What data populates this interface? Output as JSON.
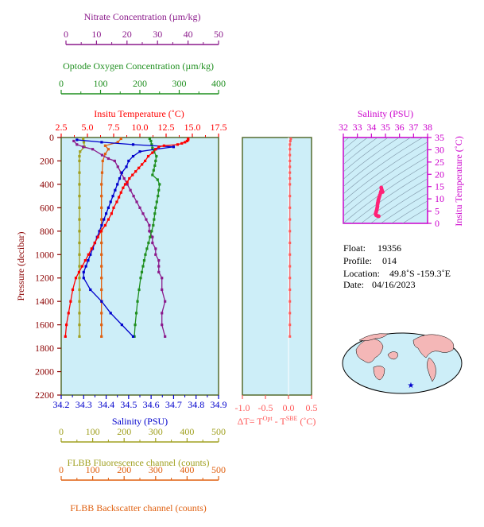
{
  "colors": {
    "nitrate": "#8b1a8b",
    "oxygen": "#1f8f1f",
    "temperature": "#ff0000",
    "salinity": "#0000cc",
    "ts_axis": "#cc00cc",
    "fluorescence": "#a0a020",
    "backscatter": "#e06010",
    "dt": "#ff5a5a",
    "plot_bg": "#cdeef8",
    "frame": "#556b2f"
  },
  "axes": {
    "nitrate_title": "Nitrate Concentration (µm/kg)",
    "nitrate_ticks": [
      "0",
      "10",
      "20",
      "30",
      "40",
      "50"
    ],
    "oxygen_title": "Optode Oxygen Concentration (µm/kg)",
    "oxygen_ticks": [
      "0",
      "100",
      "200",
      "300",
      "400"
    ],
    "temp_title": "Insitu Temperature (˚C)",
    "temp_ticks": [
      "2.5",
      "5.0",
      "7.5",
      "10.0",
      "12.5",
      "15.0",
      "17.5"
    ],
    "pressure_title": "Pressure (decibar)",
    "pressure_ticks": [
      "0",
      "200",
      "400",
      "600",
      "800",
      "1000",
      "1200",
      "1400",
      "1600",
      "1800",
      "2000",
      "2200"
    ],
    "salinity_title": "Salinity (PSU)",
    "salinity_ticks": [
      "34.2",
      "34.3",
      "34.4",
      "34.5",
      "34.6",
      "34.7",
      "34.8",
      "34.9"
    ],
    "dt_title_main": "ΔT= T",
    "dt_title_sup1": "Opt",
    "dt_title_mid": " - T",
    "dt_title_sup2": "SBE",
    "dt_title_end": " (˚C)",
    "dt_ticks": [
      "-1.0",
      "-0.5",
      "0.0",
      "0.5"
    ],
    "fluor_title": "FLBB Fluorescence channel (counts)",
    "fluor_ticks": [
      "0",
      "100",
      "200",
      "300",
      "400",
      "500"
    ],
    "back_title": "FLBB Backscatter channel (counts)",
    "back_ticks": [
      "0",
      "100",
      "200",
      "300",
      "400",
      "500"
    ],
    "ts_sal_title": "Salinity (PSU)",
    "ts_sal_ticks": [
      "32",
      "33",
      "34",
      "35",
      "36",
      "37",
      "38"
    ],
    "ts_temp_title": "Insitu Temperature (˚C)",
    "ts_temp_ticks": [
      "0",
      "5",
      "10",
      "15",
      "20",
      "25",
      "30",
      "35"
    ]
  },
  "info": {
    "float_label": "Float:",
    "float_value": "19356",
    "profile_label": "Profile:",
    "profile_value": "014",
    "location_label": "Location:",
    "location_value": "49.8˚S  -159.3˚E",
    "date_label": "Date:",
    "date_value": "04/16/2023"
  },
  "chart_data": [
    {
      "type": "line",
      "panel": "profile",
      "pressure_range": [
        0,
        2200
      ],
      "series": [
        {
          "quantity": "temperature",
          "units": "˚C",
          "xlim": [
            2.5,
            17.5
          ],
          "points": [
            [
              14.6,
              10
            ],
            [
              14.6,
              20
            ],
            [
              14.5,
              30
            ],
            [
              14.3,
              40
            ],
            [
              14.0,
              50
            ],
            [
              13.6,
              60
            ],
            [
              12.3,
              70
            ],
            [
              11.8,
              80
            ],
            [
              11.5,
              100
            ],
            [
              11.2,
              130
            ],
            [
              10.8,
              160
            ],
            [
              10.5,
              200
            ],
            [
              10.2,
              230
            ],
            [
              9.9,
              260
            ],
            [
              9.6,
              290
            ],
            [
              9.3,
              320
            ],
            [
              9.0,
              350
            ],
            [
              8.8,
              380
            ],
            [
              8.6,
              400
            ],
            [
              8.4,
              430
            ],
            [
              8.2,
              470
            ],
            [
              8.0,
              510
            ],
            [
              7.8,
              550
            ],
            [
              7.5,
              600
            ],
            [
              7.3,
              650
            ],
            [
              7.0,
              700
            ],
            [
              6.7,
              750
            ],
            [
              6.3,
              800
            ],
            [
              6.0,
              850
            ],
            [
              5.7,
              900
            ],
            [
              5.4,
              950
            ],
            [
              5.1,
              1000
            ],
            [
              4.8,
              1050
            ],
            [
              4.5,
              1100
            ],
            [
              4.2,
              1150
            ],
            [
              3.9,
              1200
            ],
            [
              3.6,
              1300
            ],
            [
              3.4,
              1400
            ],
            [
              3.2,
              1500
            ],
            [
              3.0,
              1600
            ],
            [
              2.9,
              1700
            ]
          ]
        },
        {
          "quantity": "salinity",
          "units": "PSU",
          "xlim": [
            34.2,
            34.9
          ],
          "points": [
            [
              34.27,
              20
            ],
            [
              34.38,
              40
            ],
            [
              34.52,
              60
            ],
            [
              34.7,
              80
            ],
            [
              34.62,
              100
            ],
            [
              34.55,
              120
            ],
            [
              34.52,
              160
            ],
            [
              34.5,
              200
            ],
            [
              34.49,
              250
            ],
            [
              34.47,
              300
            ],
            [
              34.46,
              350
            ],
            [
              34.45,
              400
            ],
            [
              34.44,
              450
            ],
            [
              34.43,
              500
            ],
            [
              34.42,
              550
            ],
            [
              34.41,
              600
            ],
            [
              34.4,
              650
            ],
            [
              34.39,
              700
            ],
            [
              34.38,
              750
            ],
            [
              34.37,
              800
            ],
            [
              34.36,
              850
            ],
            [
              34.35,
              900
            ],
            [
              34.34,
              950
            ],
            [
              34.33,
              1000
            ],
            [
              34.32,
              1050
            ],
            [
              34.31,
              1100
            ],
            [
              34.3,
              1150
            ],
            [
              34.3,
              1200
            ],
            [
              34.33,
              1300
            ],
            [
              34.38,
              1400
            ],
            [
              34.42,
              1500
            ],
            [
              34.47,
              1600
            ],
            [
              34.52,
              1700
            ]
          ]
        },
        {
          "quantity": "oxygen",
          "units": "µm/kg",
          "xlim": [
            0,
            400
          ],
          "points": [
            [
              225,
              10
            ],
            [
              228,
              30
            ],
            [
              230,
              60
            ],
            [
              232,
              90
            ],
            [
              236,
              120
            ],
            [
              242,
              160
            ],
            [
              240,
              200
            ],
            [
              238,
              240
            ],
            [
              235,
              280
            ],
            [
              232,
              320
            ],
            [
              245,
              360
            ],
            [
              250,
              400
            ],
            [
              248,
              450
            ],
            [
              246,
              500
            ],
            [
              243,
              550
            ],
            [
              240,
              600
            ],
            [
              238,
              650
            ],
            [
              236,
              700
            ],
            [
              234,
              750
            ],
            [
              230,
              800
            ],
            [
              226,
              850
            ],
            [
              222,
              900
            ],
            [
              218,
              950
            ],
            [
              214,
              1000
            ],
            [
              211,
              1050
            ],
            [
              208,
              1100
            ],
            [
              205,
              1150
            ],
            [
              202,
              1200
            ],
            [
              198,
              1300
            ],
            [
              194,
              1400
            ],
            [
              191,
              1500
            ],
            [
              188,
              1600
            ],
            [
              186,
              1700
            ]
          ]
        },
        {
          "quantity": "nitrate",
          "units": "µm/kg",
          "xlim": [
            0,
            50
          ],
          "points": [
            [
              4,
              30
            ],
            [
              5,
              60
            ],
            [
              7,
              80
            ],
            [
              10,
              100
            ],
            [
              13,
              150
            ],
            [
              15,
              180
            ],
            [
              17,
              200
            ],
            [
              18,
              250
            ],
            [
              19,
              300
            ],
            [
              20,
              350
            ],
            [
              21,
              400
            ],
            [
              22,
              450
            ],
            [
              23,
              500
            ],
            [
              24,
              550
            ],
            [
              25,
              600
            ],
            [
              26,
              650
            ],
            [
              27,
              700
            ],
            [
              28,
              750
            ],
            [
              28,
              800
            ],
            [
              29,
              850
            ],
            [
              29,
              900
            ],
            [
              30,
              950
            ],
            [
              30,
              1000
            ],
            [
              31,
              1050
            ],
            [
              31,
              1100
            ],
            [
              31,
              1150
            ],
            [
              32,
              1200
            ],
            [
              32,
              1300
            ],
            [
              33,
              1400
            ],
            [
              32,
              1500
            ],
            [
              32,
              1600
            ],
            [
              33,
              1700
            ]
          ]
        },
        {
          "quantity": "fluorescence",
          "units": "counts",
          "xlim": [
            0,
            500
          ],
          "points": [
            [
              70,
              10
            ],
            [
              72,
              40
            ],
            [
              74,
              80
            ],
            [
              60,
              120
            ],
            [
              58,
              160
            ],
            [
              58,
              200
            ],
            [
              58,
              300
            ],
            [
              58,
              400
            ],
            [
              58,
              500
            ],
            [
              58,
              600
            ],
            [
              58,
              700
            ],
            [
              58,
              800
            ],
            [
              58,
              900
            ],
            [
              58,
              1000
            ],
            [
              58,
              1100
            ],
            [
              58,
              1200
            ],
            [
              58,
              1300
            ],
            [
              58,
              1400
            ],
            [
              58,
              1500
            ],
            [
              58,
              1600
            ],
            [
              58,
              1700
            ]
          ]
        },
        {
          "quantity": "backscatter",
          "units": "counts",
          "xlim": [
            0,
            500
          ],
          "points": [
            [
              190,
              10
            ],
            [
              180,
              40
            ],
            [
              140,
              70
            ],
            [
              150,
              100
            ],
            [
              140,
              140
            ],
            [
              132,
              200
            ],
            [
              130,
              300
            ],
            [
              128,
              400
            ],
            [
              128,
              500
            ],
            [
              128,
              600
            ],
            [
              128,
              700
            ],
            [
              128,
              800
            ],
            [
              128,
              900
            ],
            [
              128,
              1000
            ],
            [
              128,
              1100
            ],
            [
              128,
              1200
            ],
            [
              128,
              1300
            ],
            [
              128,
              1400
            ],
            [
              128,
              1500
            ],
            [
              128,
              1600
            ],
            [
              128,
              1700
            ]
          ]
        }
      ]
    },
    {
      "type": "scatter",
      "panel": "dt",
      "xlim": [
        -1.0,
        0.5
      ],
      "pressure_range": [
        0,
        2200
      ],
      "points": [
        [
          0.05,
          10
        ],
        [
          0.04,
          30
        ],
        [
          0.03,
          60
        ],
        [
          0.03,
          100
        ],
        [
          0.03,
          150
        ],
        [
          0.03,
          200
        ],
        [
          0.03,
          250
        ],
        [
          0.03,
          300
        ],
        [
          0.03,
          350
        ],
        [
          0.03,
          400
        ],
        [
          0.03,
          500
        ],
        [
          0.03,
          600
        ],
        [
          0.03,
          700
        ],
        [
          0.03,
          800
        ],
        [
          0.03,
          900
        ],
        [
          0.03,
          1000
        ],
        [
          0.03,
          1100
        ],
        [
          0.03,
          1200
        ],
        [
          0.03,
          1300
        ],
        [
          0.03,
          1400
        ],
        [
          0.03,
          1500
        ],
        [
          0.03,
          1600
        ],
        [
          0.03,
          1700
        ]
      ]
    },
    {
      "type": "scatter",
      "panel": "ts",
      "xlim": [
        32,
        38
      ],
      "ylim": [
        0,
        35
      ],
      "points": [
        [
          34.7,
          14.6
        ],
        [
          34.72,
          14.0
        ],
        [
          34.68,
          13.0
        ],
        [
          34.65,
          12.3
        ],
        [
          34.6,
          11.5
        ],
        [
          34.56,
          10.8
        ],
        [
          34.53,
          10.2
        ],
        [
          34.5,
          9.6
        ],
        [
          34.48,
          9.0
        ],
        [
          34.46,
          8.4
        ],
        [
          34.44,
          7.8
        ],
        [
          34.43,
          7.0
        ],
        [
          34.41,
          6.3
        ],
        [
          34.39,
          5.7
        ],
        [
          34.36,
          5.1
        ],
        [
          34.33,
          4.5
        ],
        [
          34.3,
          3.9
        ],
        [
          34.33,
          3.4
        ],
        [
          34.38,
          3.2
        ],
        [
          34.45,
          3.0
        ],
        [
          34.52,
          2.9
        ],
        [
          34.75,
          13.5
        ],
        [
          34.8,
          12.8
        ]
      ]
    }
  ]
}
